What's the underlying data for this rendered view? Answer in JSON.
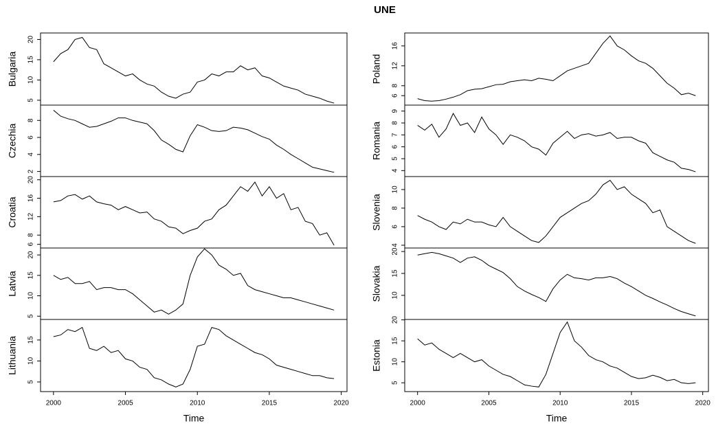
{
  "title": "UNE",
  "chart_data": [
    {
      "type": "line",
      "ylabel": "Bulgaria",
      "color": "#000000",
      "x": [
        2000,
        2000.5,
        2001,
        2001.5,
        2002,
        2002.5,
        2003,
        2003.5,
        2004,
        2004.5,
        2005,
        2005.5,
        2006,
        2006.5,
        2007,
        2007.5,
        2008,
        2008.5,
        2009,
        2009.5,
        2010,
        2010.5,
        2011,
        2011.5,
        2012,
        2012.5,
        2013,
        2013.5,
        2014,
        2014.5,
        2015,
        2015.5,
        2016,
        2016.5,
        2017,
        2017.5,
        2018,
        2018.5,
        2019,
        2019.5
      ],
      "values": [
        14.5,
        16.5,
        17.5,
        20,
        20.5,
        18,
        17.5,
        14,
        13,
        12,
        11,
        11.5,
        10,
        9,
        8.5,
        7,
        6,
        5.5,
        6.5,
        7,
        9.5,
        10,
        11.5,
        11,
        12,
        12,
        13.5,
        12.5,
        13,
        11,
        10.5,
        9.5,
        8.5,
        8,
        7.5,
        6.5,
        6,
        5.5,
        4.8,
        4.3
      ],
      "xlim": [
        1999.1,
        2020.4
      ],
      "ylim": [
        3.8,
        21.6
      ],
      "yticks": [
        5,
        10,
        15,
        20
      ]
    },
    {
      "type": "line",
      "ylabel": "Czechia",
      "color": "#000000",
      "x": [
        2000,
        2000.5,
        2001,
        2001.5,
        2002,
        2002.5,
        2003,
        2003.5,
        2004,
        2004.5,
        2005,
        2005.5,
        2006,
        2006.5,
        2007,
        2007.5,
        2008,
        2008.5,
        2009,
        2009.5,
        2010,
        2010.5,
        2011,
        2011.5,
        2012,
        2012.5,
        2013,
        2013.5,
        2014,
        2014.5,
        2015,
        2015.5,
        2016,
        2016.5,
        2017,
        2017.5,
        2018,
        2018.5,
        2019,
        2019.5
      ],
      "values": [
        9.2,
        8.5,
        8.2,
        8.0,
        7.6,
        7.2,
        7.3,
        7.6,
        7.9,
        8.3,
        8.3,
        8.0,
        7.8,
        7.6,
        6.8,
        5.7,
        5.2,
        4.6,
        4.3,
        6.2,
        7.5,
        7.2,
        6.8,
        6.7,
        6.8,
        7.2,
        7.1,
        6.9,
        6.5,
        6.1,
        5.8,
        5.1,
        4.6,
        4.0,
        3.5,
        3.0,
        2.5,
        2.3,
        2.1,
        1.9
      ],
      "xlim": [
        1999.1,
        2020.4
      ],
      "ylim": [
        1.4,
        9.8
      ],
      "yticks": [
        2,
        4,
        6,
        8
      ]
    },
    {
      "type": "line",
      "ylabel": "Croatia",
      "color": "#000000",
      "x": [
        2000,
        2000.5,
        2001,
        2001.5,
        2002,
        2002.5,
        2003,
        2003.5,
        2004,
        2004.5,
        2005,
        2005.5,
        2006,
        2006.5,
        2007,
        2007.5,
        2008,
        2008.5,
        2009,
        2009.5,
        2010,
        2010.5,
        2011,
        2011.5,
        2012,
        2012.5,
        2013,
        2013.5,
        2014,
        2014.5,
        2015,
        2015.5,
        2016,
        2016.5,
        2017,
        2017.5,
        2018,
        2018.5,
        2019,
        2019.5
      ],
      "values": [
        15.2,
        15.5,
        16.5,
        16.8,
        15.8,
        16.5,
        15.2,
        14.8,
        14.5,
        13.5,
        14.2,
        13.5,
        12.8,
        13.0,
        11.5,
        11.0,
        9.8,
        9.5,
        8.3,
        9.0,
        9.5,
        11.0,
        11.5,
        13.5,
        14.5,
        16.5,
        18.5,
        17.5,
        19.5,
        16.5,
        18.5,
        16.0,
        17.0,
        13.5,
        14.0,
        11.0,
        10.5,
        8.0,
        8.5,
        5.8
      ],
      "xlim": [
        1999.1,
        2020.4
      ],
      "ylim": [
        5.2,
        20.7
      ],
      "yticks": [
        6,
        8,
        12,
        16,
        20
      ]
    },
    {
      "type": "line",
      "ylabel": "Latvia",
      "color": "#000000",
      "x": [
        2000,
        2000.5,
        2001,
        2001.5,
        2002,
        2002.5,
        2003,
        2003.5,
        2004,
        2004.5,
        2005,
        2005.5,
        2006,
        2006.5,
        2007,
        2007.5,
        2008,
        2008.5,
        2009,
        2009.5,
        2010,
        2010.5,
        2011,
        2011.5,
        2012,
        2012.5,
        2013,
        2013.5,
        2014,
        2014.5,
        2015,
        2015.5,
        2016,
        2016.5,
        2017,
        2017.5,
        2018,
        2018.5,
        2019,
        2019.5
      ],
      "values": [
        15,
        14,
        14.5,
        13,
        13,
        13.5,
        11.5,
        12,
        12,
        11.5,
        11.5,
        10.5,
        9,
        7.5,
        6,
        6.5,
        5.5,
        6.5,
        8,
        15,
        19.5,
        21.5,
        20,
        17.5,
        16.5,
        15,
        15.5,
        12.5,
        11.5,
        11,
        10.5,
        10,
        9.5,
        9.5,
        9,
        8.5,
        8,
        7.5,
        7,
        6.5
      ],
      "xlim": [
        1999.1,
        2020.4
      ],
      "ylim": [
        4.2,
        21.7
      ],
      "yticks": [
        5,
        10,
        15,
        20
      ]
    },
    {
      "type": "line",
      "ylabel": "Lithuania",
      "color": "#000000",
      "xlabel": "Time",
      "x": [
        2000,
        2000.5,
        2001,
        2001.5,
        2002,
        2002.5,
        2003,
        2003.5,
        2004,
        2004.5,
        2005,
        2005.5,
        2006,
        2006.5,
        2007,
        2007.5,
        2008,
        2008.5,
        2009,
        2009.5,
        2010,
        2010.5,
        2011,
        2011.5,
        2012,
        2012.5,
        2013,
        2013.5,
        2014,
        2014.5,
        2015,
        2015.5,
        2016,
        2016.5,
        2017,
        2017.5,
        2018,
        2018.5,
        2019,
        2019.5
      ],
      "values": [
        15.8,
        16.2,
        17.5,
        17,
        18,
        13,
        12.5,
        13.5,
        12,
        12.5,
        10.5,
        10,
        8.5,
        8,
        6,
        5.5,
        4.5,
        3.8,
        4.5,
        8,
        13.5,
        14,
        18,
        17.5,
        16,
        15,
        14,
        13,
        12,
        11.5,
        10.5,
        9,
        8.5,
        8,
        7.5,
        7,
        6.5,
        6.5,
        6,
        5.8
      ],
      "xlim": [
        1999.1,
        2020.4
      ],
      "xticks": [
        2000,
        2005,
        2010,
        2015,
        2020
      ],
      "ylim": [
        2.7,
        19.9
      ],
      "yticks": [
        5,
        10,
        15
      ]
    },
    {
      "type": "line",
      "ylabel": "Poland",
      "color": "#000000",
      "x": [
        2000,
        2000.5,
        2001,
        2001.5,
        2002,
        2002.5,
        2003,
        2003.5,
        2004,
        2004.5,
        2005,
        2005.5,
        2006,
        2006.5,
        2007,
        2007.5,
        2008,
        2008.5,
        2009,
        2009.5,
        2010,
        2010.5,
        2011,
        2011.5,
        2012,
        2012.5,
        2013,
        2013.5,
        2014,
        2014.5,
        2015,
        2015.5,
        2016,
        2016.5,
        2017,
        2017.5,
        2018,
        2018.5,
        2019,
        2019.5
      ],
      "values": [
        5.4,
        5.0,
        4.9,
        5.0,
        5.3,
        5.7,
        6.2,
        7.0,
        7.3,
        7.4,
        7.8,
        8.2,
        8.3,
        8.8,
        9.0,
        9.2,
        9.0,
        9.5,
        9.3,
        9.0,
        10.0,
        11.0,
        11.5,
        12.0,
        12.5,
        14.5,
        16.5,
        18.0,
        16.0,
        15.2,
        14.0,
        13.0,
        12.5,
        11.5,
        10.0,
        8.5,
        7.5,
        6.2,
        6.5,
        6.0
      ],
      "xlim": [
        1999.1,
        2020.4
      ],
      "ylim": [
        4.1,
        18.6
      ],
      "yticks": [
        6,
        8,
        12,
        16
      ]
    },
    {
      "type": "line",
      "ylabel": "Romania",
      "color": "#000000",
      "x": [
        2000,
        2000.5,
        2001,
        2001.5,
        2002,
        2002.5,
        2003,
        2003.5,
        2004,
        2004.5,
        2005,
        2005.5,
        2006,
        2006.5,
        2007,
        2007.5,
        2008,
        2008.5,
        2009,
        2009.5,
        2010,
        2010.5,
        2011,
        2011.5,
        2012,
        2012.5,
        2013,
        2013.5,
        2014,
        2014.5,
        2015,
        2015.5,
        2016,
        2016.5,
        2017,
        2017.5,
        2018,
        2018.5,
        2019,
        2019.5
      ],
      "values": [
        7.8,
        7.4,
        7.9,
        6.8,
        7.5,
        8.8,
        7.8,
        8.0,
        7.2,
        8.5,
        7.5,
        7.0,
        6.2,
        7.0,
        6.8,
        6.5,
        6.0,
        5.8,
        5.3,
        6.3,
        6.8,
        7.3,
        6.7,
        7.0,
        7.1,
        6.9,
        7.0,
        7.2,
        6.7,
        6.8,
        6.8,
        6.5,
        6.3,
        5.5,
        5.2,
        4.9,
        4.7,
        4.2,
        4.1,
        3.9
      ],
      "xlim": [
        1999.1,
        2020.4
      ],
      "ylim": [
        3.5,
        9.5
      ],
      "yticks": [
        4,
        5,
        6,
        7,
        8,
        9
      ]
    },
    {
      "type": "line",
      "ylabel": "Slovenia",
      "color": "#000000",
      "x": [
        2000,
        2000.5,
        2001,
        2001.5,
        2002,
        2002.5,
        2003,
        2003.5,
        2004,
        2004.5,
        2005,
        2005.5,
        2006,
        2006.5,
        2007,
        2007.5,
        2008,
        2008.5,
        2009,
        2009.5,
        2010,
        2010.5,
        2011,
        2011.5,
        2012,
        2012.5,
        2013,
        2013.5,
        2014,
        2014.5,
        2015,
        2015.5,
        2016,
        2016.5,
        2017,
        2017.5,
        2018,
        2018.5,
        2019,
        2019.5
      ],
      "values": [
        7.2,
        6.8,
        6.5,
        6.0,
        5.7,
        6.5,
        6.3,
        6.8,
        6.5,
        6.5,
        6.2,
        6.0,
        7.0,
        6.0,
        5.5,
        5.0,
        4.5,
        4.3,
        5.0,
        6.0,
        7.0,
        7.5,
        8.0,
        8.5,
        8.8,
        9.5,
        10.5,
        11.0,
        10.0,
        10.3,
        9.5,
        9.0,
        8.5,
        7.5,
        7.8,
        6.0,
        5.5,
        5.0,
        4.5,
        4.2
      ],
      "xlim": [
        1999.1,
        2020.4
      ],
      "ylim": [
        3.7,
        11.4
      ],
      "yticks": [
        4,
        6,
        8,
        10
      ]
    },
    {
      "type": "line",
      "ylabel": "Slovakia",
      "color": "#000000",
      "x": [
        2000,
        2000.5,
        2001,
        2001.5,
        2002,
        2002.5,
        2003,
        2003.5,
        2004,
        2004.5,
        2005,
        2005.5,
        2006,
        2006.5,
        2007,
        2007.5,
        2008,
        2008.5,
        2009,
        2009.5,
        2010,
        2010.5,
        2011,
        2011.5,
        2012,
        2012.5,
        2013,
        2013.5,
        2014,
        2014.5,
        2015,
        2015.5,
        2016,
        2016.5,
        2017,
        2017.5,
        2018,
        2018.5,
        2019,
        2019.5
      ],
      "values": [
        19.2,
        19.5,
        19.8,
        19.5,
        19.0,
        18.5,
        17.5,
        18.5,
        18.8,
        18.0,
        16.8,
        16.0,
        15.2,
        13.8,
        12.0,
        11.0,
        10.2,
        9.5,
        8.6,
        11.5,
        13.5,
        14.8,
        14.0,
        13.8,
        13.5,
        14.0,
        14.0,
        14.3,
        13.8,
        12.8,
        12.0,
        11.0,
        10.0,
        9.3,
        8.5,
        7.8,
        7.0,
        6.3,
        5.8,
        5.3
      ],
      "xlim": [
        1999.1,
        2020.4
      ],
      "ylim": [
        4.5,
        20.8
      ],
      "yticks": [
        10,
        15,
        20
      ]
    },
    {
      "type": "line",
      "ylabel": "Estonia",
      "color": "#000000",
      "xlabel": "Time",
      "x": [
        2000,
        2000.5,
        2001,
        2001.5,
        2002,
        2002.5,
        2003,
        2003.5,
        2004,
        2004.5,
        2005,
        2005.5,
        2006,
        2006.5,
        2007,
        2007.5,
        2008,
        2008.5,
        2009,
        2009.5,
        2010,
        2010.5,
        2011,
        2011.5,
        2012,
        2012.5,
        2013,
        2013.5,
        2014,
        2014.5,
        2015,
        2015.5,
        2016,
        2016.5,
        2017,
        2017.5,
        2018,
        2018.5,
        2019,
        2019.5
      ],
      "values": [
        15.5,
        14,
        14.5,
        13,
        12,
        11,
        12,
        11,
        10,
        10.5,
        9,
        8,
        7,
        6.5,
        5.5,
        4.5,
        4.2,
        4.0,
        7,
        12,
        17,
        19.5,
        15,
        13.5,
        11.5,
        10.5,
        10,
        9,
        8.5,
        7.5,
        6.5,
        6.0,
        6.2,
        6.8,
        6.3,
        5.5,
        5.8,
        5.0,
        4.8,
        5.0
      ],
      "xlim": [
        1999.1,
        2020.4
      ],
      "xticks": [
        2000,
        2005,
        2010,
        2015,
        2020
      ],
      "ylim": [
        2.9,
        20.1
      ],
      "yticks": [
        5,
        10,
        15,
        20
      ]
    }
  ]
}
